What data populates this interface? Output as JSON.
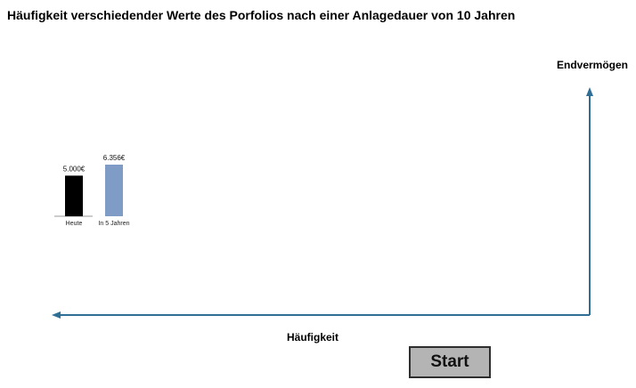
{
  "title": "Häufigkeit verschiedender Werte des Porfolios nach einer Anlagedauer von 10 Jahren",
  "axes": {
    "y_label": "Endvermögen",
    "x_label": "Häufigkeit",
    "color": "#2f6f96"
  },
  "start_button": {
    "label": "Start"
  },
  "chart_data": {
    "type": "bar",
    "categories": [
      "Heute",
      "In 5 Jahren"
    ],
    "values": [
      5000,
      6356
    ],
    "value_labels": [
      "5.000€",
      "6.356€"
    ],
    "colors": [
      "#000000",
      "#7f9cc6"
    ]
  }
}
